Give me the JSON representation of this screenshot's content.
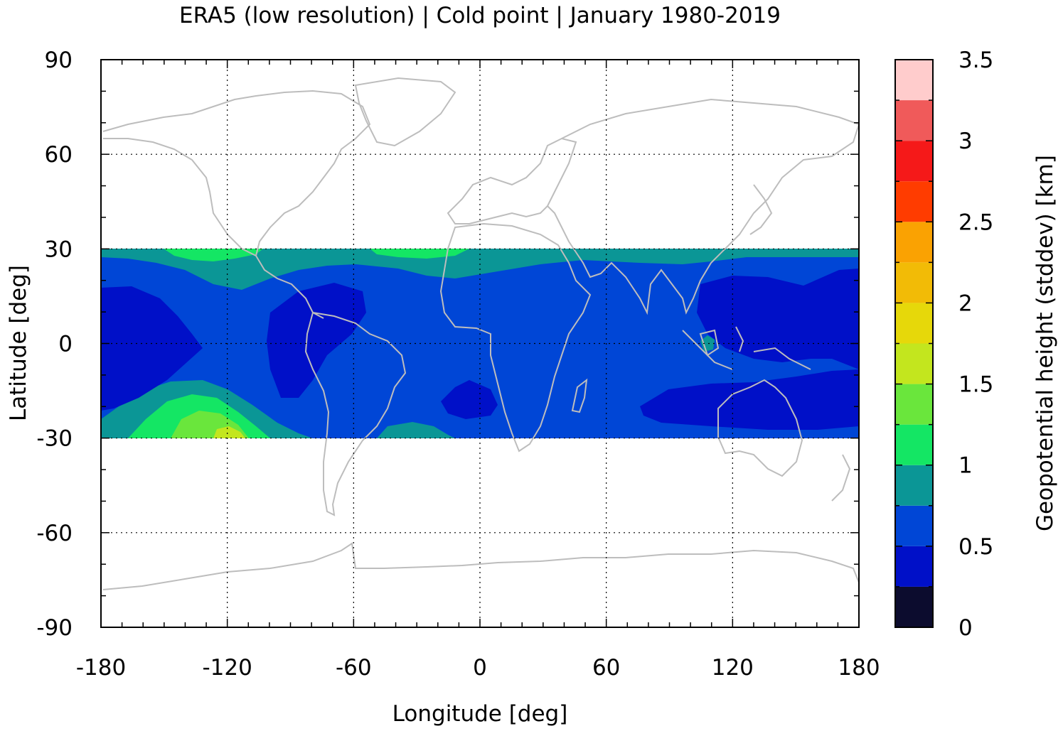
{
  "chart_data": {
    "type": "heatmap",
    "title": "ERA5 (low resolution) | Cold point | January 1980-2019",
    "xlabel": "Longitude [deg]",
    "ylabel": "Latitude [deg]",
    "xlim": [
      -180,
      180
    ],
    "ylim": [
      -90,
      90
    ],
    "x_ticks": [
      -180,
      -120,
      -60,
      0,
      60,
      120,
      180
    ],
    "y_ticks": [
      90,
      60,
      30,
      0,
      -30,
      -60,
      -90
    ],
    "x_tick_labels": [
      "-180",
      "-120",
      "-60",
      "0",
      "60",
      "120",
      "180"
    ],
    "y_tick_labels": [
      "90",
      "60",
      "30",
      "0",
      "-30",
      "-60",
      "-90"
    ],
    "data_lat_range": [
      -30,
      30
    ],
    "grid": true,
    "coastlines": true,
    "coastline_color": "#bdbdbd",
    "colorbar": {
      "label": "Geopotential height (stddev) [km]",
      "min": 0,
      "max": 3.5,
      "step": 0.25,
      "ticks": [
        0,
        0.5,
        1,
        1.5,
        2,
        2.5,
        3,
        3.5
      ],
      "tick_labels": [
        "0",
        "0.5",
        "1",
        "1.5",
        "2",
        "2.5",
        "3",
        "3.5"
      ],
      "colors": [
        "#0c0c2e",
        "#0010c8",
        "#0046d6",
        "#0b9696",
        "#14e664",
        "#6ae63c",
        "#c3e61e",
        "#e6d80a",
        "#f2bb06",
        "#faa202",
        "#ff3c00",
        "#f51919",
        "#f05a5a",
        "#ffcccc"
      ]
    },
    "field_summary": [
      {
        "region": "tropical band background",
        "stddev_km_range": [
          0.5,
          0.75
        ]
      },
      {
        "region": "central Pacific near equator",
        "stddev_km_range": [
          0.25,
          0.5
        ]
      },
      {
        "region": "western Pacific / Maritime Continent",
        "stddev_km_range": [
          0.25,
          0.5
        ]
      },
      {
        "region": "south Indian Ocean ~20S",
        "stddev_km_range": [
          0.25,
          0.5
        ]
      },
      {
        "region": "southeast Pacific ~25S, 125W",
        "stddev_km_range": [
          1.25,
          1.5
        ]
      },
      {
        "region": "north Atlantic / Africa edge ~28N",
        "stddev_km_range": [
          1.0,
          1.25
        ]
      }
    ]
  }
}
